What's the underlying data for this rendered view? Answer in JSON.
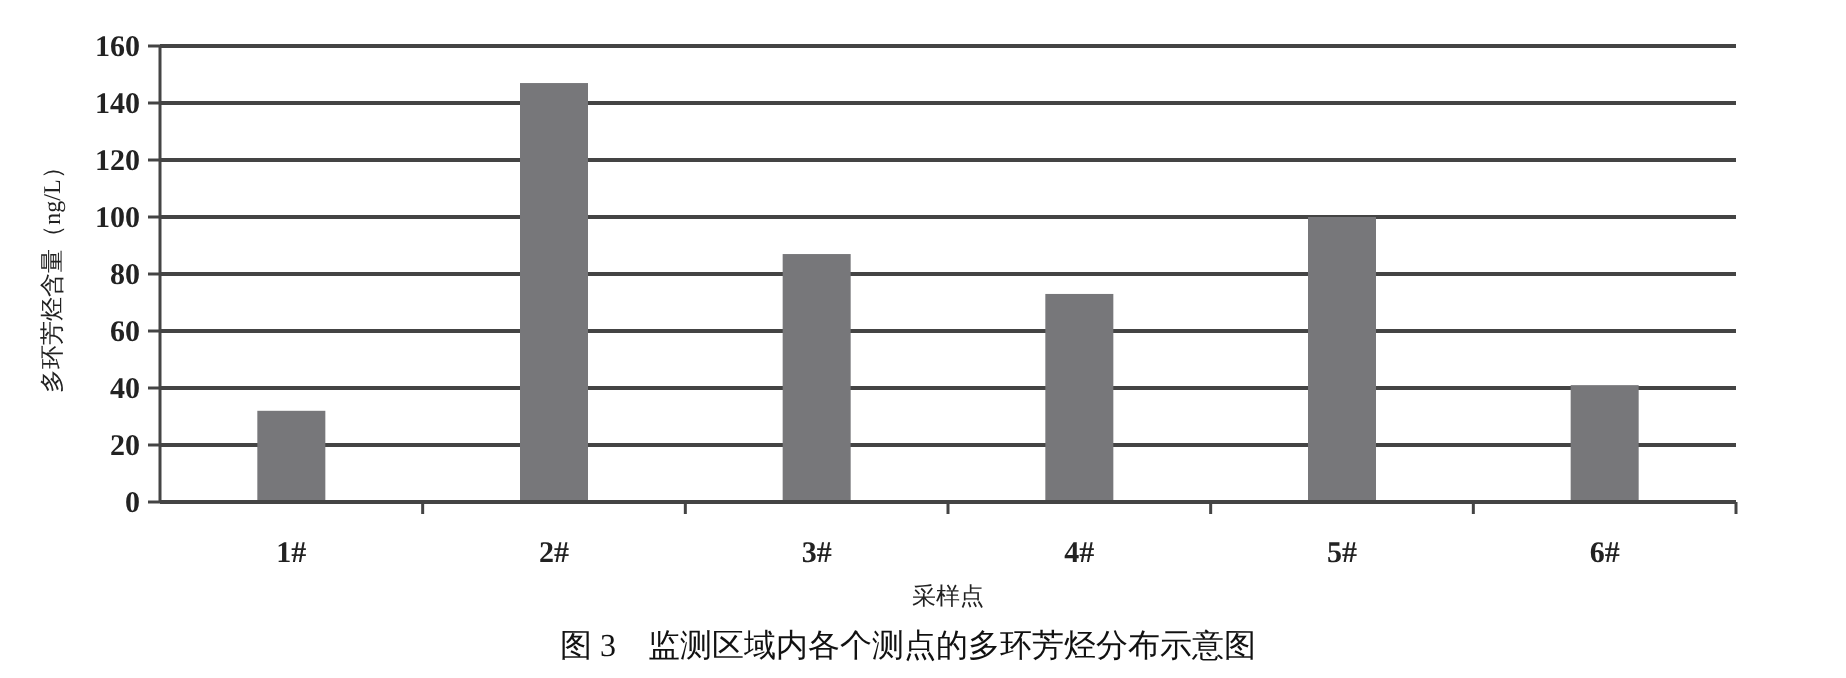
{
  "chart_data": {
    "type": "bar",
    "title": "图 3　监测区域内各个测点的多环芳烃分布示意图",
    "xlabel": "采样点",
    "ylabel": "多环芳烃含量（ng/L）",
    "categories": [
      "1#",
      "2#",
      "3#",
      "4#",
      "5#",
      "6#"
    ],
    "values": [
      32,
      147,
      87,
      73,
      100,
      41
    ],
    "color": "#77777a",
    "ylim": [
      0,
      160
    ],
    "yticks": [
      0,
      20,
      40,
      60,
      80,
      100,
      120,
      140,
      160
    ],
    "grid": "y"
  }
}
